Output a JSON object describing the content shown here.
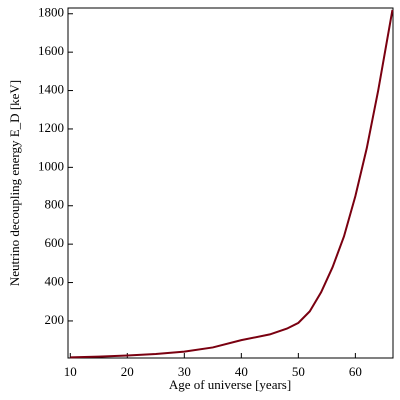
{
  "chart_data": {
    "type": "line",
    "xlabel": "Age of universe [years]",
    "ylabel": "Neutrino decoupling energy E_D [keV]",
    "x": [
      10,
      15,
      20,
      25,
      30,
      35,
      40,
      45,
      48,
      50,
      52,
      54,
      56,
      58,
      60,
      62,
      64,
      66.5
    ],
    "series": [
      {
        "name": "E_D",
        "color": "#7a0010",
        "values": [
          10,
          14,
          20,
          28,
          40,
          62,
          100,
          130,
          160,
          190,
          250,
          350,
          480,
          640,
          850,
          1100,
          1400,
          1820
        ]
      }
    ],
    "xlim": [
      9.6,
      66.6
    ],
    "xticks": [
      10,
      20,
      30,
      40,
      50,
      60
    ],
    "ylim": [
      7,
      1830
    ],
    "yticks": [
      200,
      400,
      600,
      800,
      1000,
      1200,
      1400,
      1600,
      1800
    ]
  }
}
